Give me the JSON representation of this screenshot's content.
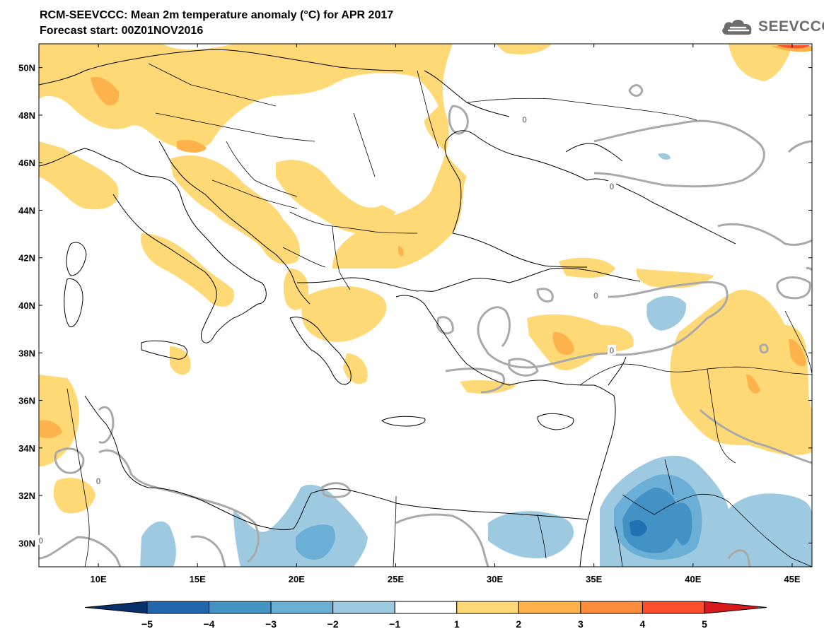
{
  "title": {
    "line1": "RCM-SEEVCCC: Mean 2m temperature anomaly (°C) for APR 2017",
    "line2": "Forecast start: 00Z01NOV2016"
  },
  "logo": {
    "text": "SEEVCCC",
    "icon": "cloud-icon"
  },
  "map": {
    "lon_range": [
      7,
      46
    ],
    "lat_range": [
      29,
      51
    ],
    "lat_ticks": [
      {
        "value": 50,
        "label": "50N"
      },
      {
        "value": 48,
        "label": "48N"
      },
      {
        "value": 46,
        "label": "46N"
      },
      {
        "value": 44,
        "label": "44N"
      },
      {
        "value": 42,
        "label": "42N"
      },
      {
        "value": 40,
        "label": "40N"
      },
      {
        "value": 38,
        "label": "38N"
      },
      {
        "value": 36,
        "label": "36N"
      },
      {
        "value": 34,
        "label": "34N"
      },
      {
        "value": 32,
        "label": "32N"
      },
      {
        "value": 30,
        "label": "30N"
      }
    ],
    "lon_ticks": [
      {
        "value": 10,
        "label": "10E"
      },
      {
        "value": 15,
        "label": "15E"
      },
      {
        "value": 20,
        "label": "20E"
      },
      {
        "value": 25,
        "label": "25E"
      },
      {
        "value": 30,
        "label": "30E"
      },
      {
        "value": 35,
        "label": "35E"
      },
      {
        "value": 40,
        "label": "40E"
      },
      {
        "value": 45,
        "label": "45E"
      }
    ],
    "contour_labels": [
      {
        "text": "0",
        "lon": 31.5,
        "lat": 47.8
      },
      {
        "text": "0",
        "lon": 35.9,
        "lat": 45.0
      },
      {
        "text": "0",
        "lon": 35.1,
        "lat": 40.4
      },
      {
        "text": "0",
        "lon": 35.9,
        "lat": 38.1
      },
      {
        "text": "0",
        "lon": 10.0,
        "lat": 32.6
      },
      {
        "text": "0",
        "lon": 7.1,
        "lat": 30.1
      }
    ],
    "colors": {
      "ocean": "#ffffff",
      "coast": "#000000",
      "contour": "#a9a9a9",
      "warm1": "#fed976",
      "warm2": "#feb24c",
      "warm3": "#fd8d3c",
      "warm4": "#fc4e2a",
      "warm5": "#e31a1c",
      "cool1": "#9ecae1",
      "cool2": "#6baed6",
      "cool3": "#4292c6",
      "cool4": "#2171b5",
      "cool5": "#08519c"
    }
  },
  "colorbar": {
    "labels": [
      "−5",
      "−4",
      "−3",
      "−2",
      "−1",
      "1",
      "2",
      "3",
      "4",
      "5"
    ],
    "colors": [
      "#08306b",
      "#2166ac",
      "#4393c3",
      "#6baed6",
      "#9ecae1",
      "#ffffff",
      "#fed976",
      "#feb24c",
      "#fd8d3c",
      "#fc4e2a",
      "#d7191c"
    ]
  }
}
